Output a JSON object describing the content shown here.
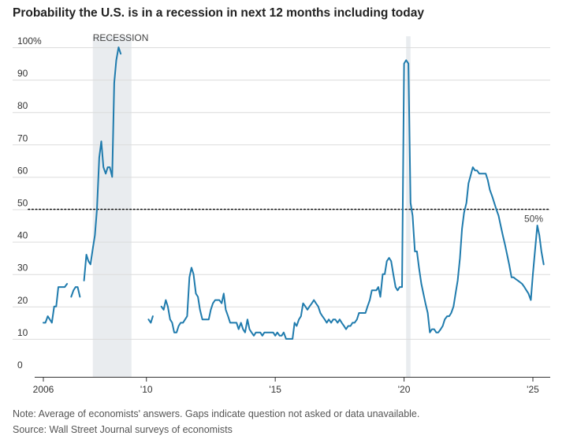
{
  "chart_data": {
    "type": "line",
    "title": "Probability the U.S. is in a recession in next 12 months including today",
    "xlabel": "",
    "ylabel": "",
    "ylim": [
      0,
      100
    ],
    "xlim": [
      2006,
      2025.6
    ],
    "y_ticks": [
      {
        "value": 0,
        "label": "0"
      },
      {
        "value": 10,
        "label": "10"
      },
      {
        "value": 20,
        "label": "20"
      },
      {
        "value": 30,
        "label": "30"
      },
      {
        "value": 40,
        "label": "40"
      },
      {
        "value": 50,
        "label": "50"
      },
      {
        "value": 60,
        "label": "60"
      },
      {
        "value": 70,
        "label": "70"
      },
      {
        "value": 80,
        "label": "80"
      },
      {
        "value": 90,
        "label": "90"
      },
      {
        "value": 100,
        "label": "100%"
      }
    ],
    "x_ticks": [
      {
        "value": 2006,
        "label": "2006"
      },
      {
        "value": 2010,
        "label": "'10"
      },
      {
        "value": 2015,
        "label": "'15"
      },
      {
        "value": 2020,
        "label": "'20"
      },
      {
        "value": 2025,
        "label": "'25"
      }
    ],
    "grid": "horizontal",
    "reference_line": {
      "value": 50,
      "label": "50%",
      "style": "dotted"
    },
    "recessions": [
      {
        "label": "RECESSION",
        "start": 2007.92,
        "end": 2009.42
      },
      {
        "label": "",
        "start": 2020.08,
        "end": 2020.25
      }
    ],
    "line_color": "#1f7bad",
    "shade_color": "#e9ecef",
    "series": [
      {
        "segments": [
          [
            [
              2006.0,
              15
            ],
            [
              2006.08,
              15
            ],
            [
              2006.17,
              17
            ],
            [
              2006.25,
              16
            ],
            [
              2006.33,
              15
            ],
            [
              2006.42,
              20
            ],
            [
              2006.5,
              20
            ],
            [
              2006.58,
              26
            ],
            [
              2006.67,
              26
            ],
            [
              2006.75,
              26
            ],
            [
              2006.83,
              26
            ],
            [
              2006.92,
              27
            ]
          ],
          [
            [
              2007.08,
              23
            ],
            [
              2007.17,
              25
            ],
            [
              2007.25,
              26
            ],
            [
              2007.33,
              26
            ],
            [
              2007.42,
              23
            ]
          ],
          [
            [
              2007.58,
              28
            ],
            [
              2007.67,
              36
            ],
            [
              2007.75,
              34
            ],
            [
              2007.83,
              33
            ],
            [
              2007.92,
              38
            ],
            [
              2008.0,
              42
            ],
            [
              2008.08,
              50
            ],
            [
              2008.17,
              66
            ],
            [
              2008.25,
              71
            ],
            [
              2008.33,
              63
            ],
            [
              2008.42,
              61
            ],
            [
              2008.5,
              63
            ],
            [
              2008.58,
              63
            ],
            [
              2008.67,
              60
            ],
            [
              2008.75,
              89
            ],
            [
              2008.83,
              96
            ],
            [
              2008.92,
              100
            ],
            [
              2009.0,
              98
            ]
          ]
        ]
      },
      {
        "segments": [
          [
            [
              2010.08,
              16
            ],
            [
              2010.17,
              15
            ],
            [
              2010.25,
              17
            ]
          ],
          [
            [
              2010.58,
              20
            ],
            [
              2010.67,
              19
            ],
            [
              2010.75,
              22
            ],
            [
              2010.83,
              20
            ],
            [
              2010.92,
              16
            ],
            [
              2011.0,
              15
            ],
            [
              2011.08,
              12
            ],
            [
              2011.17,
              12
            ],
            [
              2011.25,
              14
            ],
            [
              2011.33,
              15
            ],
            [
              2011.42,
              15
            ],
            [
              2011.5,
              16
            ],
            [
              2011.58,
              17
            ],
            [
              2011.67,
              29
            ],
            [
              2011.75,
              32
            ],
            [
              2011.83,
              30
            ],
            [
              2011.92,
              24
            ],
            [
              2012.0,
              23
            ],
            [
              2012.08,
              19
            ],
            [
              2012.17,
              16
            ],
            [
              2012.25,
              16
            ],
            [
              2012.33,
              16
            ],
            [
              2012.42,
              16
            ],
            [
              2012.5,
              19
            ],
            [
              2012.58,
              21
            ],
            [
              2012.67,
              22
            ],
            [
              2012.75,
              22
            ],
            [
              2012.83,
              22
            ],
            [
              2012.92,
              21
            ],
            [
              2013.0,
              24
            ],
            [
              2013.08,
              19
            ],
            [
              2013.17,
              17
            ],
            [
              2013.25,
              15
            ],
            [
              2013.33,
              15
            ],
            [
              2013.42,
              15
            ],
            [
              2013.5,
              15
            ],
            [
              2013.58,
              13
            ],
            [
              2013.67,
              15
            ],
            [
              2013.75,
              13
            ],
            [
              2013.83,
              12
            ],
            [
              2013.92,
              16
            ],
            [
              2014.0,
              13
            ],
            [
              2014.08,
              12
            ],
            [
              2014.17,
              11
            ],
            [
              2014.25,
              12
            ],
            [
              2014.33,
              12
            ],
            [
              2014.42,
              12
            ],
            [
              2014.5,
              11
            ],
            [
              2014.58,
              12
            ],
            [
              2014.67,
              12
            ],
            [
              2014.75,
              12
            ],
            [
              2014.83,
              12
            ],
            [
              2014.92,
              12
            ],
            [
              2015.0,
              11
            ],
            [
              2015.08,
              12
            ],
            [
              2015.17,
              11
            ],
            [
              2015.25,
              11
            ],
            [
              2015.33,
              12
            ],
            [
              2015.42,
              10
            ],
            [
              2015.5,
              10
            ],
            [
              2015.58,
              10
            ],
            [
              2015.67,
              10
            ],
            [
              2015.75,
              15
            ],
            [
              2015.83,
              14
            ],
            [
              2015.92,
              16
            ],
            [
              2016.0,
              17
            ],
            [
              2016.08,
              21
            ],
            [
              2016.17,
              20
            ],
            [
              2016.25,
              19
            ],
            [
              2016.33,
              20
            ],
            [
              2016.42,
              21
            ],
            [
              2016.5,
              22
            ],
            [
              2016.58,
              21
            ],
            [
              2016.67,
              20
            ],
            [
              2016.75,
              18
            ],
            [
              2016.83,
              17
            ],
            [
              2016.92,
              16
            ],
            [
              2017.0,
              15
            ],
            [
              2017.08,
              16
            ],
            [
              2017.17,
              15
            ],
            [
              2017.25,
              16
            ],
            [
              2017.33,
              16
            ],
            [
              2017.42,
              15
            ],
            [
              2017.5,
              16
            ],
            [
              2017.58,
              15
            ],
            [
              2017.67,
              14
            ],
            [
              2017.75,
              13
            ],
            [
              2017.83,
              14
            ],
            [
              2017.92,
              14
            ],
            [
              2018.0,
              15
            ],
            [
              2018.08,
              15
            ],
            [
              2018.17,
              16
            ],
            [
              2018.25,
              18
            ],
            [
              2018.33,
              18
            ],
            [
              2018.42,
              18
            ],
            [
              2018.5,
              18
            ],
            [
              2018.58,
              20
            ],
            [
              2018.67,
              22
            ],
            [
              2018.75,
              25
            ],
            [
              2018.83,
              25
            ],
            [
              2018.92,
              25
            ],
            [
              2019.0,
              26
            ],
            [
              2019.08,
              23
            ],
            [
              2019.17,
              30
            ],
            [
              2019.25,
              30
            ],
            [
              2019.33,
              34
            ],
            [
              2019.42,
              35
            ],
            [
              2019.5,
              34
            ],
            [
              2019.58,
              30
            ],
            [
              2019.67,
              26
            ],
            [
              2019.75,
              25
            ],
            [
              2019.83,
              26
            ],
            [
              2019.92,
              26
            ],
            [
              2020.0,
              95
            ],
            [
              2020.08,
              96
            ],
            [
              2020.17,
              95
            ],
            [
              2020.25,
              52
            ],
            [
              2020.33,
              48
            ],
            [
              2020.42,
              37
            ],
            [
              2020.5,
              37
            ],
            [
              2020.58,
              32
            ],
            [
              2020.67,
              27
            ],
            [
              2020.75,
              24
            ],
            [
              2020.83,
              21
            ],
            [
              2020.92,
              18
            ],
            [
              2021.0,
              12
            ],
            [
              2021.08,
              13
            ],
            [
              2021.17,
              13
            ],
            [
              2021.25,
              12
            ],
            [
              2021.33,
              12
            ],
            [
              2021.42,
              13
            ],
            [
              2021.5,
              14
            ],
            [
              2021.58,
              16
            ],
            [
              2021.67,
              17
            ],
            [
              2021.75,
              17
            ],
            [
              2021.83,
              18
            ],
            [
              2021.92,
              20
            ],
            [
              2022.0,
              24
            ],
            [
              2022.08,
              28
            ],
            [
              2022.17,
              35
            ],
            [
              2022.25,
              44
            ],
            [
              2022.33,
              49
            ],
            [
              2022.42,
              52
            ],
            [
              2022.5,
              58
            ],
            [
              2022.67,
              63
            ],
            [
              2022.75,
              62
            ],
            [
              2022.83,
              62
            ],
            [
              2022.92,
              61
            ],
            [
              2023.0,
              61
            ],
            [
              2023.08,
              61
            ],
            [
              2023.17,
              61
            ],
            [
              2023.25,
              59
            ],
            [
              2023.33,
              56
            ],
            [
              2023.42,
              54
            ],
            [
              2023.5,
              52
            ],
            [
              2023.58,
              50
            ],
            [
              2023.67,
              48
            ],
            [
              2023.75,
              45
            ],
            [
              2023.83,
              42
            ],
            [
              2023.92,
              39
            ],
            [
              2024.0,
              36
            ],
            [
              2024.08,
              33
            ],
            [
              2024.17,
              29
            ],
            [
              2024.25,
              29
            ],
            [
              2024.33,
              28.5
            ],
            [
              2024.42,
              28
            ],
            [
              2024.5,
              27.5
            ],
            [
              2024.58,
              27
            ],
            [
              2024.67,
              26
            ],
            [
              2024.75,
              25
            ],
            [
              2024.83,
              24
            ],
            [
              2024.92,
              22
            ],
            [
              2025.0,
              30
            ],
            [
              2025.08,
              37
            ],
            [
              2025.17,
              45
            ],
            [
              2025.25,
              42
            ],
            [
              2025.33,
              37
            ],
            [
              2025.42,
              33
            ]
          ]
        ]
      }
    ]
  },
  "notes": {
    "note": "Note: Average of economists' answers. Gaps indicate question not asked or data unavailable.",
    "source": "Source: Wall Street Journal surveys of economists"
  }
}
